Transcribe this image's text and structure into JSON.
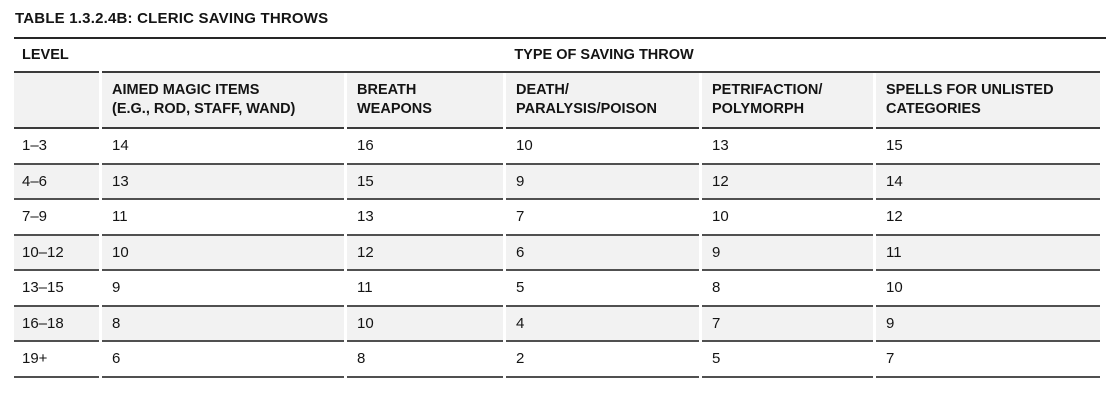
{
  "title": "TABLE 1.3.2.4B: CLERIC SAVING THROWS",
  "table": {
    "level_header": "LEVEL",
    "group_header": "TYPE OF SAVING THROW",
    "columns": [
      {
        "line1": "AIMED MAGIC ITEMS",
        "line2": "(E.G., ROD, STAFF, WAND)"
      },
      {
        "line1": "BREATH",
        "line2": "WEAPONS"
      },
      {
        "line1": "DEATH/",
        "line2": "PARALYSIS/POISON"
      },
      {
        "line1": "PETRIFACTION/",
        "line2": "POLYMORPH"
      },
      {
        "line1": "SPELLS FOR UNLISTED",
        "line2": "CATEGORIES"
      }
    ],
    "rows": [
      {
        "level": "1–3",
        "values": [
          14,
          16,
          10,
          13,
          15
        ]
      },
      {
        "level": "4–6",
        "values": [
          13,
          15,
          9,
          12,
          14
        ]
      },
      {
        "level": "7–9",
        "values": [
          11,
          13,
          7,
          10,
          12
        ]
      },
      {
        "level": "10–12",
        "values": [
          10,
          12,
          6,
          9,
          11
        ]
      },
      {
        "level": "13–15",
        "values": [
          9,
          11,
          5,
          8,
          10
        ]
      },
      {
        "level": "16–18",
        "values": [
          8,
          10,
          4,
          7,
          9
        ]
      },
      {
        "level": "19+",
        "values": [
          6,
          8,
          2,
          5,
          7
        ]
      }
    ]
  },
  "colors": {
    "stripe_bg": "#f2f2f2",
    "rule_title": "#262626",
    "rule_header": "#3b3b3b",
    "rule_row": "#505050",
    "text": "#141414"
  }
}
